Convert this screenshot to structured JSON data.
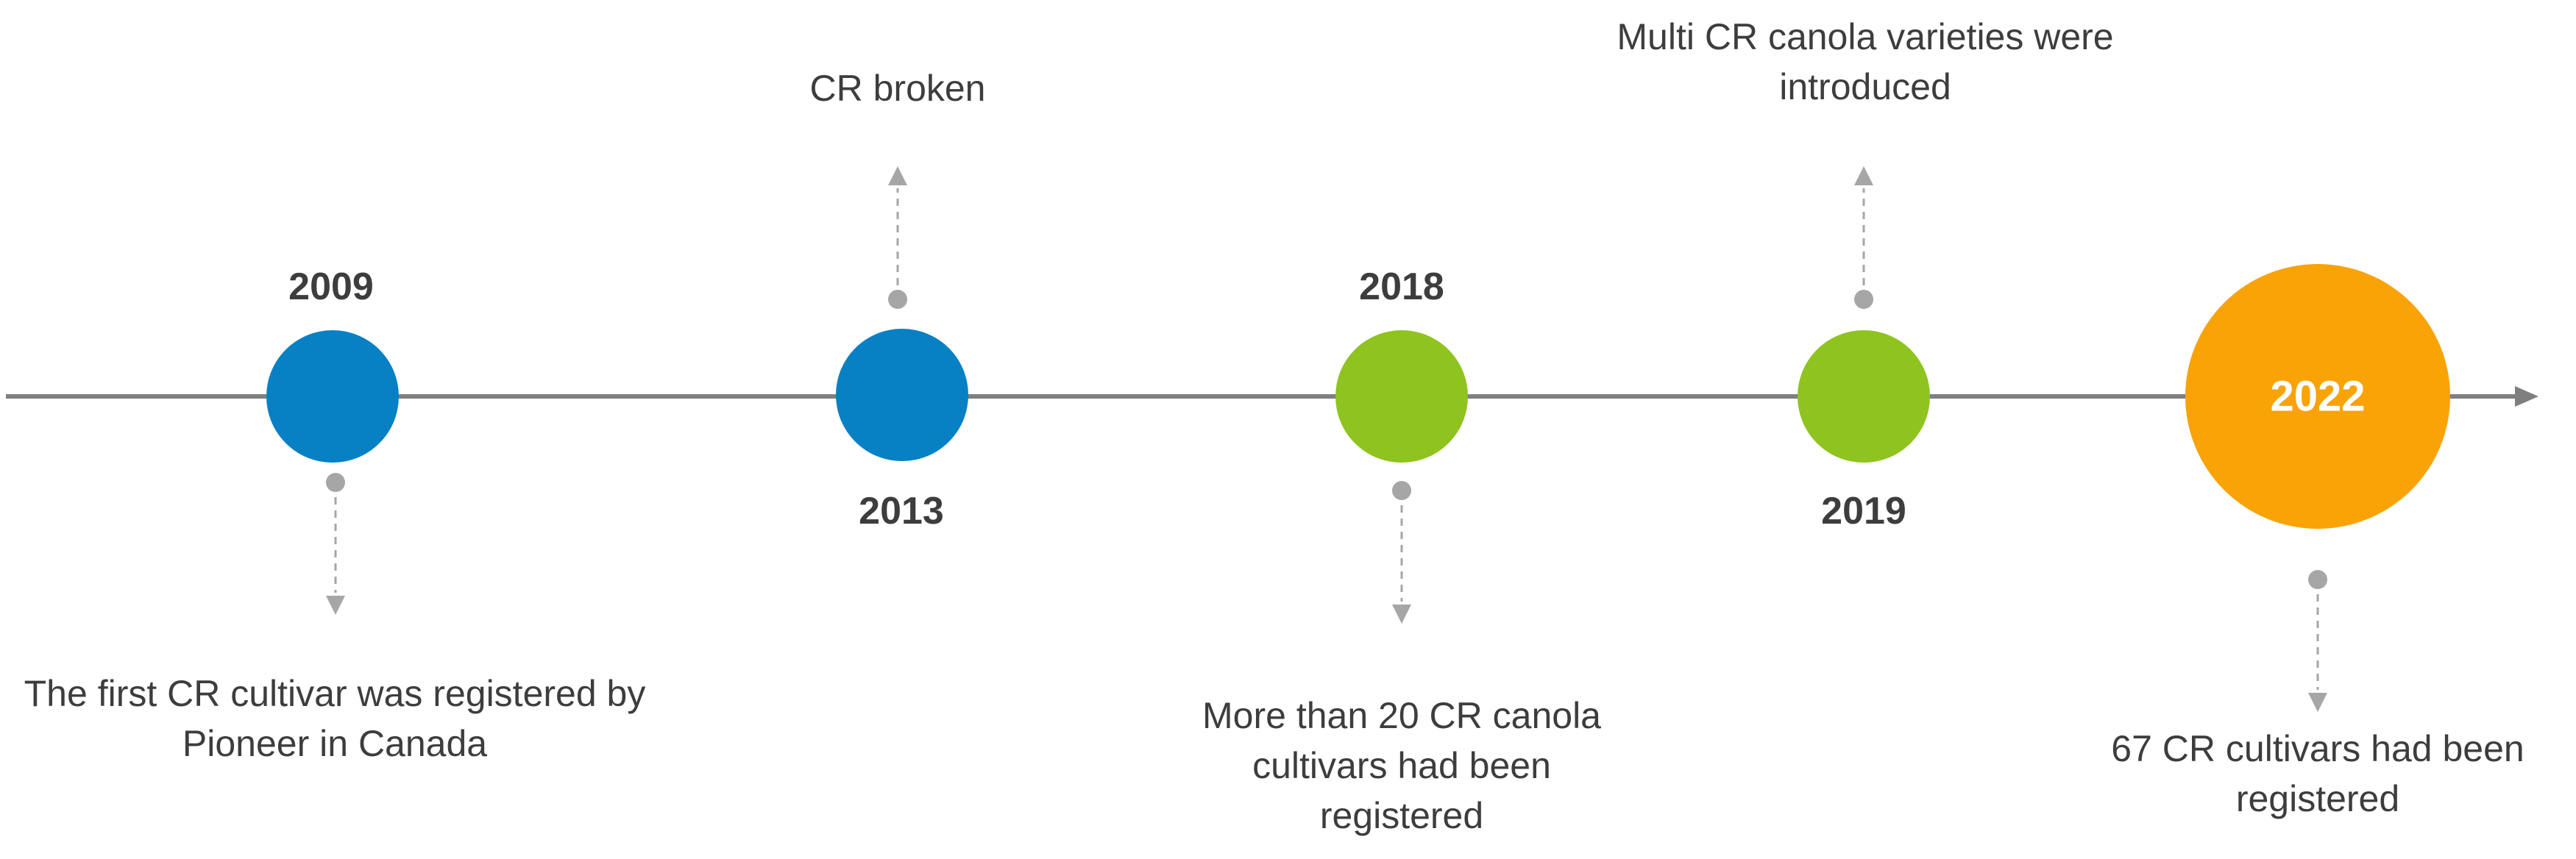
{
  "colors": {
    "line": "#7f7f7f",
    "connector": "#a6a6a6",
    "blue": "#0780c4",
    "green": "#8fc31f",
    "orange": "#f9a307",
    "text": "#3d3d3d"
  },
  "events": [
    {
      "year": "2009",
      "description": "The first CR cultivar was registered by Pioneer in Canada",
      "color": "blue"
    },
    {
      "year": "2013",
      "description": "CR broken",
      "color": "blue"
    },
    {
      "year": "2018",
      "description": "More than 20 CR canola cultivars had been registered",
      "color": "green"
    },
    {
      "year": "2019",
      "description": "Multi CR canola varieties were introduced",
      "color": "green"
    },
    {
      "year": "2022",
      "description": "67 CR cultivars had been registered",
      "color": "orange"
    }
  ]
}
